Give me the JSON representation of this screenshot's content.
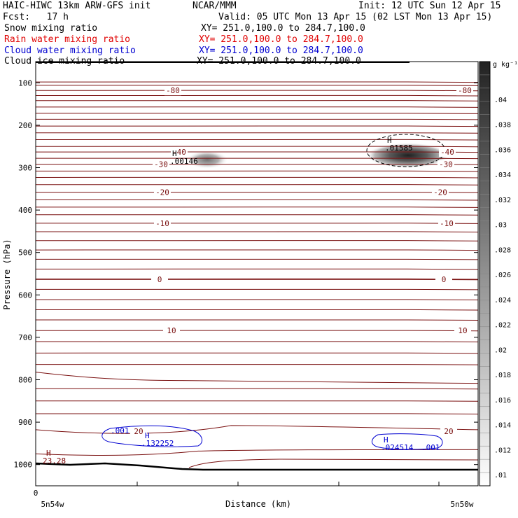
{
  "header": {
    "model": "HAIC-HIWC 13km ARW-GFS init",
    "center": "NCAR/MMM",
    "init": "Init: 12 UTC Sun 12 Apr 15",
    "fcst": "Fcst:   17 h",
    "valid": "Valid: 05 UTC Mon 13 Apr 15 (02 LST Mon 13 Apr 15)"
  },
  "fields": [
    {
      "label": "Snow mixing ratio",
      "xy": "XY= 251.0,100.0 to 284.7,100.0",
      "color": "#000000"
    },
    {
      "label": "Rain water mixing ratio",
      "xy": "XY= 251.0,100.0 to 284.7,100.0",
      "color": "#e00000"
    },
    {
      "label": "Cloud water mixing ratio",
      "xy": "XY= 251.0,100.0 to 284.7,100.0",
      "color": "#0000d0"
    },
    {
      "label": "Cloud ice mixing ratio",
      "xy": "XY= 251.0,100.0 to 284.7,100.0",
      "color": "#000000"
    }
  ],
  "chart_data": {
    "type": "heatmap",
    "xlabel": "Distance (km)",
    "ylabel": "Pressure (hPa)",
    "x_ticks": [
      "0",
      "5n54w",
      "5n50w"
    ],
    "y_ticks": [
      100,
      200,
      300,
      400,
      500,
      600,
      700,
      800,
      900,
      1000
    ],
    "ylim": [
      50,
      1050
    ],
    "colorbar": {
      "unit": "g kg⁻¹",
      "ticks": [
        ".01",
        ".012",
        ".014",
        ".016",
        ".018",
        ".02",
        ".022",
        ".024",
        ".026",
        ".028",
        ".03",
        ".032",
        ".034",
        ".036",
        ".038",
        ".04"
      ]
    },
    "temperature_contours": [
      {
        "value": "-80",
        "p": 118
      },
      {
        "value": "-40",
        "p": 263
      },
      {
        "value": "-30",
        "p": 292
      },
      {
        "value": "-20",
        "p": 358
      },
      {
        "value": "-10",
        "p": 431
      },
      {
        "value": "0",
        "p": 563
      },
      {
        "value": "10",
        "p": 684
      },
      {
        "value": "20",
        "p": 921
      }
    ],
    "maxima": [
      {
        "label": "H",
        "value": ".00146",
        "field": "Snow mixing ratio",
        "color": "#000000"
      },
      {
        "label": "H",
        "value": ".01585",
        "field": "Snow mixing ratio",
        "color": "#000000"
      },
      {
        "label": "H",
        "value": "23.28",
        "color": "#7a0000"
      },
      {
        "label": "H",
        "value": ".132252",
        "field": "Cloud water mixing ratio",
        "color": "#0000d0"
      },
      {
        "label": "H",
        "value": ".024514",
        "field": "Cloud water mixing ratio",
        "color": "#0000d0"
      }
    ],
    "cloud_water_contour_labels": [
      ".001",
      ".001"
    ]
  }
}
